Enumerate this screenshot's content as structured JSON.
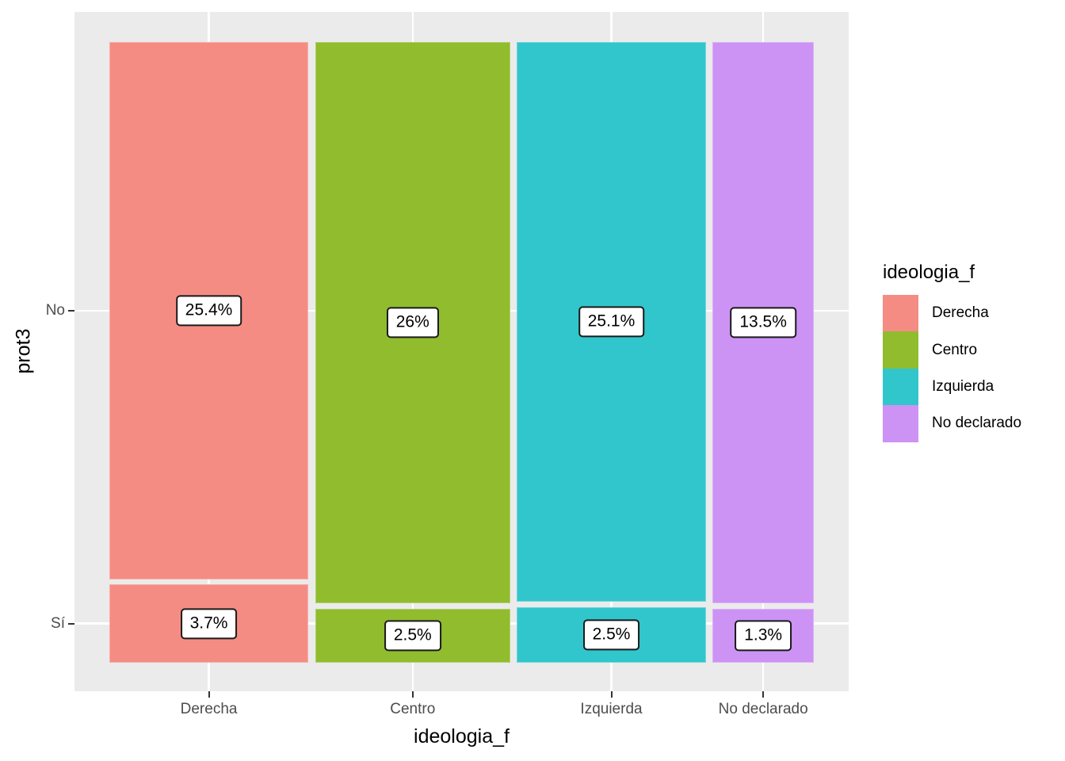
{
  "chart_data": {
    "type": "mosaic",
    "xlabel": "ideologia_f",
    "ylabel": "prot3",
    "x_categories": [
      "Derecha",
      "Centro",
      "Izquierda",
      "No declarado"
    ],
    "y_categories": [
      "No",
      "Sí"
    ],
    "cells": [
      {
        "x": "Derecha",
        "y": "No",
        "percent": 25.4,
        "label": "25.4%"
      },
      {
        "x": "Derecha",
        "y": "Sí",
        "percent": 3.7,
        "label": "3.7%"
      },
      {
        "x": "Centro",
        "y": "No",
        "percent": 26.0,
        "label": "26%"
      },
      {
        "x": "Centro",
        "y": "Sí",
        "percent": 2.5,
        "label": "2.5%"
      },
      {
        "x": "Izquierda",
        "y": "No",
        "percent": 25.1,
        "label": "25.1%"
      },
      {
        "x": "Izquierda",
        "y": "Sí",
        "percent": 2.5,
        "label": "2.5%"
      },
      {
        "x": "No declarado",
        "y": "No",
        "percent": 13.5,
        "label": "13.5%"
      },
      {
        "x": "No declarado",
        "y": "Sí",
        "percent": 1.3,
        "label": "1.3%"
      }
    ],
    "colors": {
      "Derecha": "#F58C84",
      "Centro": "#90BC2E",
      "Izquierda": "#31C6CC",
      "No declarado": "#CC93F5"
    },
    "panel_background": "#EBEBEB",
    "gridline_color": "#FFFFFF",
    "axis_text_color": "#4D4D4D",
    "legend": {
      "title": "ideologia_f",
      "position": "right",
      "entries": [
        "Derecha",
        "Centro",
        "Izquierda",
        "No declarado"
      ]
    }
  }
}
